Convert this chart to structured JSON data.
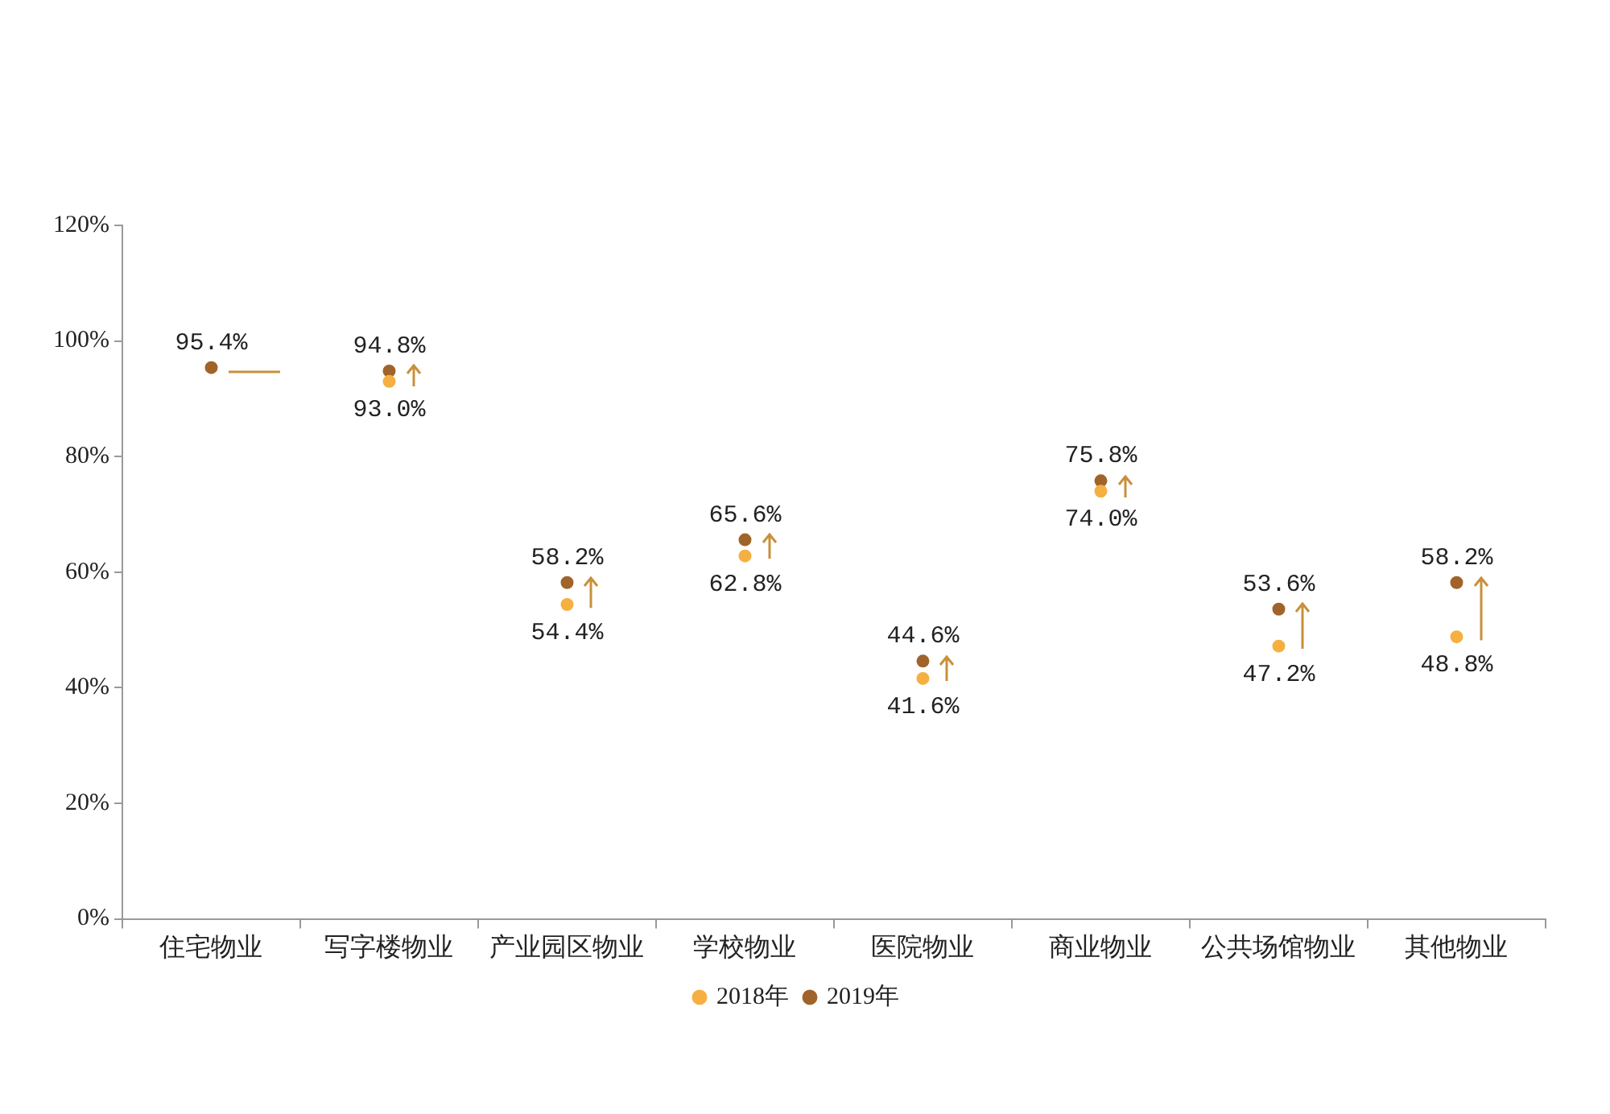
{
  "chart_data": {
    "type": "scatter",
    "categories": [
      "住宅物业",
      "写字楼物业",
      "产业园区物业",
      "学校物业",
      "医院物业",
      "商业物业",
      "公共场馆物业",
      "其他物业"
    ],
    "series": [
      {
        "name": "2018年",
        "color": "#f5b041",
        "values": [
          null,
          93.0,
          54.4,
          62.8,
          41.6,
          74.0,
          47.2,
          48.8
        ],
        "value_labels": [
          null,
          "93.0%",
          "54.4%",
          "62.8%",
          "41.6%",
          "74.0%",
          "47.2%",
          "48.8%"
        ]
      },
      {
        "name": "2019年",
        "color": "#a0642a",
        "values": [
          95.4,
          94.8,
          58.2,
          65.6,
          44.6,
          75.8,
          53.6,
          58.2
        ],
        "value_labels": [
          "95.4%",
          "94.8%",
          "58.2%",
          "65.6%",
          "44.6%",
          "75.8%",
          "53.6%",
          "58.2%"
        ]
      }
    ],
    "ylim": [
      0,
      120
    ],
    "yticks": [
      {
        "value": 0,
        "label": "0%"
      },
      {
        "value": 20,
        "label": "20%"
      },
      {
        "value": 40,
        "label": "40%"
      },
      {
        "value": 60,
        "label": "60%"
      },
      {
        "value": 80,
        "label": "80%"
      },
      {
        "value": 100,
        "label": "100%"
      },
      {
        "value": 120,
        "label": "120%"
      }
    ],
    "grid": false,
    "legend": "bottom",
    "marker": "circle"
  }
}
